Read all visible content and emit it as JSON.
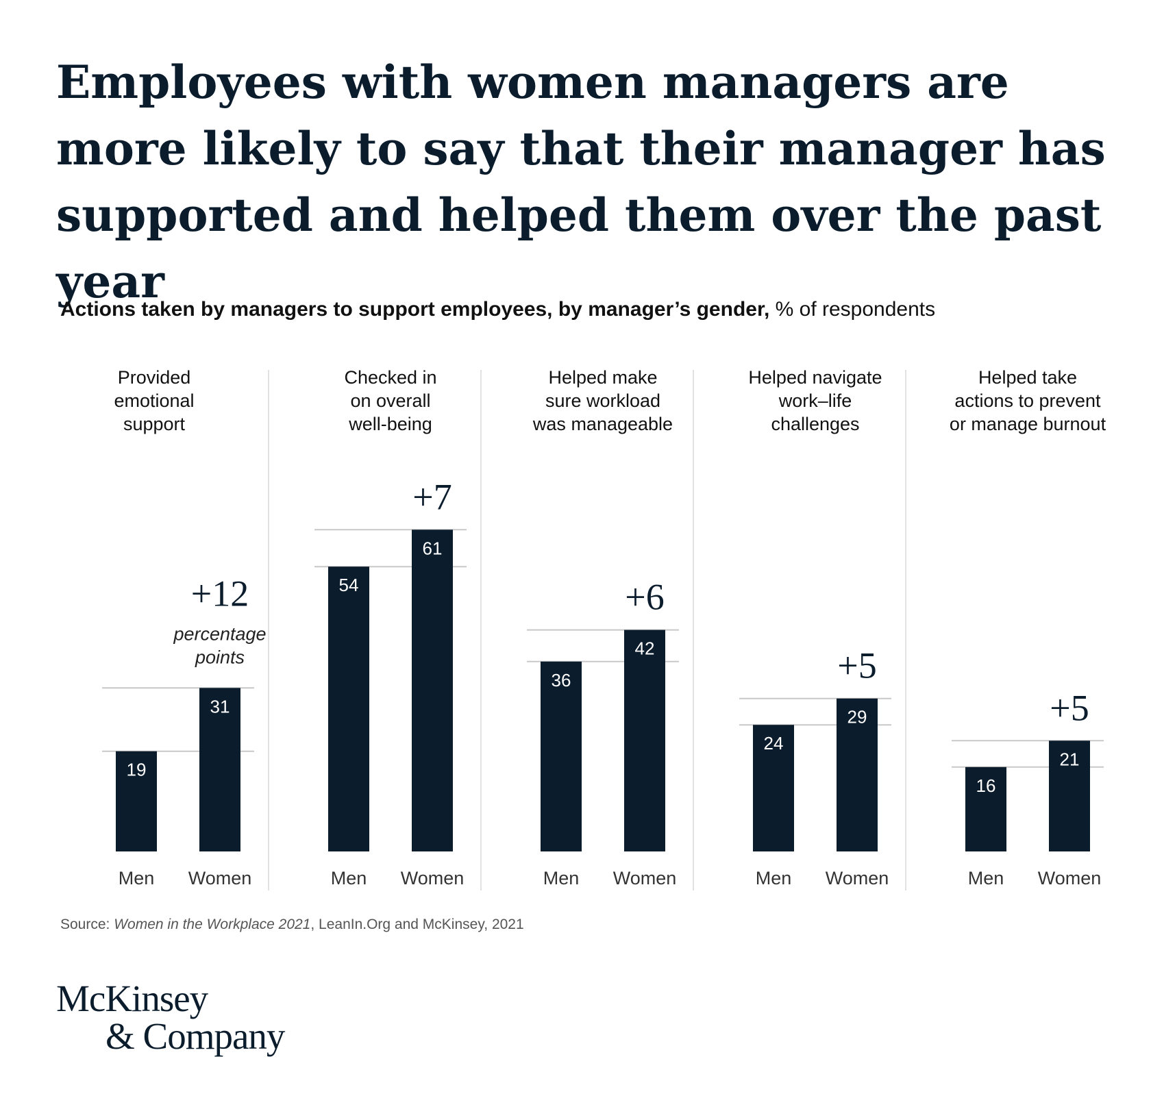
{
  "headline": "Employees with women managers are more likely to say that their manager has supported and helped them over the past year",
  "subtitle_bold": "Actions taken by managers to support employees, by manager’s gender,",
  "subtitle_rest": " % of respondents",
  "source": {
    "prefix": "Source: ",
    "italic": "Women in the Workplace 2021",
    "rest": ", LeanIn.Org and McKinsey, 2021"
  },
  "logo": {
    "line1": "McKinsey",
    "line2": "& Company"
  },
  "colors": {
    "bar": "#0b1c2c",
    "gridline": "#c8c8c8",
    "divider": "#d9d9d9"
  },
  "chart_data": {
    "type": "bar",
    "title": "Actions taken by managers to support employees, by manager’s gender, % of respondents",
    "ylabel": "% of respondents",
    "ylim": [
      0,
      100
    ],
    "series_names": [
      "Men",
      "Women"
    ],
    "difference_unit_label": "percentage points",
    "groups": [
      {
        "label": [
          "Provided",
          "emotional",
          "support"
        ],
        "men": 19,
        "women": 31,
        "diff": "+12"
      },
      {
        "label": [
          "Checked in",
          "on overall",
          "well-being"
        ],
        "men": 54,
        "women": 61,
        "diff": "+7"
      },
      {
        "label": [
          "Helped make",
          "sure workload",
          "was manageable"
        ],
        "men": 36,
        "women": 42,
        "diff": "+6"
      },
      {
        "label": [
          "Helped navigate",
          "work–life",
          "challenges"
        ],
        "men": 24,
        "women": 29,
        "diff": "+5"
      },
      {
        "label": [
          "Helped take",
          "actions to prevent",
          "or manage burnout"
        ],
        "men": 16,
        "women": 21,
        "diff": "+5"
      }
    ]
  }
}
